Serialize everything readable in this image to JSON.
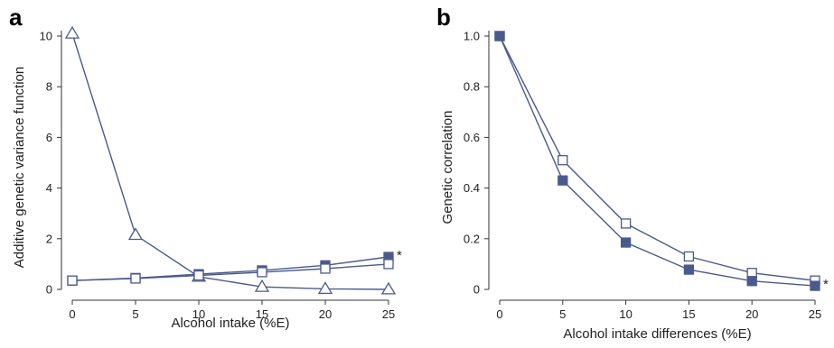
{
  "chart_data": [
    {
      "type": "line",
      "panel": "a",
      "xlabel": "Alcohol intake (%E)",
      "ylabel": "Additive genetic variance function",
      "x": [
        0,
        5,
        10,
        15,
        20,
        25
      ],
      "xlim": [
        0,
        25
      ],
      "ylim": [
        0,
        10
      ],
      "xticks": [
        0,
        5,
        10,
        15,
        20,
        25
      ],
      "yticks": [
        0,
        2,
        4,
        6,
        8,
        10
      ],
      "grid": false,
      "series": [
        {
          "marker": "open-triangle",
          "values": [
            10.1,
            2.15,
            0.5,
            0.1,
            0.02,
            0.0
          ]
        },
        {
          "marker": "filled-square",
          "values": [
            0.35,
            0.45,
            0.6,
            0.75,
            0.95,
            1.28
          ]
        },
        {
          "marker": "open-square",
          "values": [
            0.35,
            0.43,
            0.55,
            0.68,
            0.82,
            1.0
          ]
        }
      ],
      "annotations": [
        {
          "text": "*",
          "x": 25,
          "y": 1.28
        }
      ],
      "color": "#4a5a8c"
    },
    {
      "type": "line",
      "panel": "b",
      "xlabel": "Alcohol intake differences (%E)",
      "ylabel": "Genetic correlation",
      "x": [
        0,
        5,
        10,
        15,
        20,
        25
      ],
      "xlim": [
        0,
        25
      ],
      "ylim": [
        0,
        1.0
      ],
      "xticks": [
        0,
        5,
        10,
        15,
        20,
        25
      ],
      "yticks": [
        0,
        0.2,
        0.4,
        0.6,
        0.8,
        1.0
      ],
      "ytick_labels": [
        "0",
        "0.2",
        "0.4",
        "0.6",
        "0.8",
        "1.0"
      ],
      "grid": false,
      "series": [
        {
          "marker": "open-square",
          "values": [
            1.0,
            0.51,
            0.26,
            0.13,
            0.065,
            0.035
          ]
        },
        {
          "marker": "filled-square",
          "values": [
            1.0,
            0.43,
            0.185,
            0.078,
            0.033,
            0.014
          ]
        }
      ],
      "annotations": [
        {
          "text": "*",
          "x": 25,
          "y": 0.014
        }
      ],
      "color": "#4a5a8c"
    }
  ]
}
